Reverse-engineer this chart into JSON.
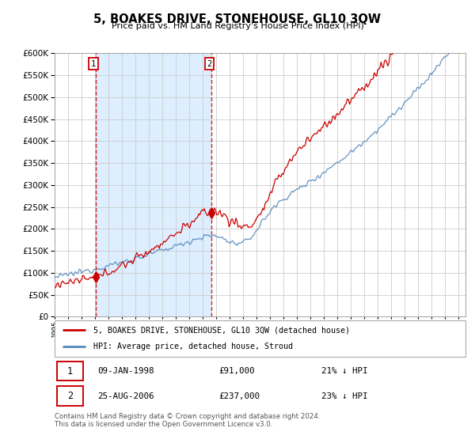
{
  "title": "5, BOAKES DRIVE, STONEHOUSE, GL10 3QW",
  "subtitle": "Price paid vs. HM Land Registry's House Price Index (HPI)",
  "red_label": "5, BOAKES DRIVE, STONEHOUSE, GL10 3QW (detached house)",
  "blue_label": "HPI: Average price, detached house, Stroud",
  "marker1_date": "09-JAN-1998",
  "marker1_price": 91000,
  "marker1_pct": "21% ↓ HPI",
  "marker1_x": 1998.04,
  "marker2_date": "25-AUG-2006",
  "marker2_price": 237000,
  "marker2_pct": "23% ↓ HPI",
  "marker2_x": 2006.65,
  "ylim": [
    0,
    600000
  ],
  "yticks": [
    0,
    50000,
    100000,
    150000,
    200000,
    250000,
    300000,
    350000,
    400000,
    450000,
    500000,
    550000,
    600000
  ],
  "footer": "Contains HM Land Registry data © Crown copyright and database right 2024.\nThis data is licensed under the Open Government Licence v3.0.",
  "red_color": "#cc0000",
  "blue_color": "#5588bb",
  "shade_color": "#ddeeff",
  "grid_color": "#cccccc",
  "xstart": 1995,
  "xend": 2025.5
}
